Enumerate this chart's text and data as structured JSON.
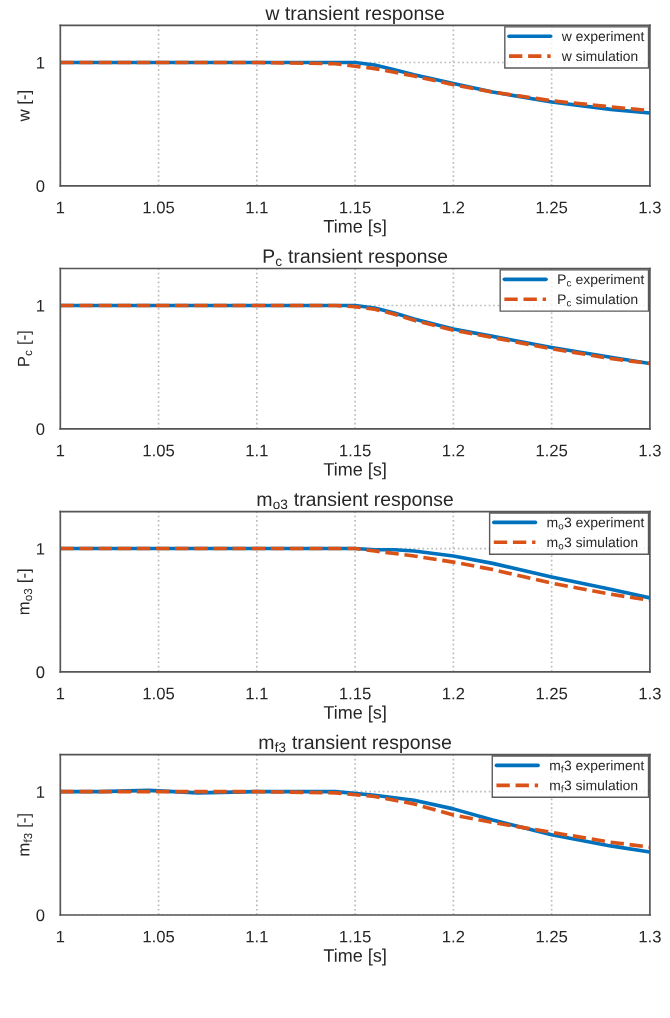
{
  "chart_data": [
    {
      "type": "line",
      "title": "w transient response",
      "xlabel": "Time [s]",
      "ylabel": "w [-]",
      "xlim": [
        1,
        1.3
      ],
      "ylim": [
        0,
        1.3
      ],
      "xticks": [
        1,
        1.05,
        1.1,
        1.15,
        1.2,
        1.25,
        1.3
      ],
      "yticks": [
        0,
        1
      ],
      "grid": true,
      "legend": "top right",
      "x": [
        1,
        1.05,
        1.1,
        1.14,
        1.15,
        1.16,
        1.17,
        1.18,
        1.2,
        1.22,
        1.25,
        1.28,
        1.3
      ],
      "series": [
        {
          "name": "w experiment",
          "color": "#0072bd",
          "line_style": "solid",
          "values": [
            1,
            1,
            1,
            1,
            1,
            0.98,
            0.94,
            0.9,
            0.83,
            0.76,
            0.68,
            0.62,
            0.59
          ]
        },
        {
          "name": "w simulation",
          "color": "#d95319",
          "line_style": "dashed",
          "values": [
            1,
            1,
            1,
            0.99,
            0.97,
            0.95,
            0.92,
            0.89,
            0.82,
            0.76,
            0.69,
            0.64,
            0.61
          ]
        }
      ]
    },
    {
      "type": "line",
      "title": "P$_{c}$ transient response",
      "xlabel": "Time [s]",
      "ylabel": "P$_{c}$ [-]",
      "xlim": [
        1,
        1.3
      ],
      "ylim": [
        0,
        1.3
      ],
      "xticks": [
        1,
        1.05,
        1.1,
        1.15,
        1.2,
        1.25,
        1.3
      ],
      "yticks": [
        0,
        1
      ],
      "grid": true,
      "legend": "top right",
      "x": [
        1,
        1.05,
        1.1,
        1.14,
        1.15,
        1.16,
        1.17,
        1.18,
        1.2,
        1.22,
        1.25,
        1.28,
        1.3
      ],
      "series": [
        {
          "name": "P$_{c}$ experiment",
          "color": "#0072bd",
          "line_style": "solid",
          "values": [
            1,
            1,
            1,
            1,
            1,
            0.98,
            0.94,
            0.89,
            0.81,
            0.75,
            0.66,
            0.58,
            0.53
          ]
        },
        {
          "name": "P$_{c}$ simulation",
          "color": "#d95319",
          "line_style": "dashed",
          "values": [
            1,
            1,
            1,
            1,
            0.99,
            0.97,
            0.93,
            0.88,
            0.8,
            0.74,
            0.65,
            0.57,
            0.53
          ]
        }
      ]
    },
    {
      "type": "line",
      "title": "m$_{o3}$ transient response",
      "xlabel": "Time [s]",
      "ylabel": "m$_{o3}$ [-]",
      "xlim": [
        1,
        1.3
      ],
      "ylim": [
        0,
        1.3
      ],
      "xticks": [
        1,
        1.05,
        1.1,
        1.15,
        1.2,
        1.25,
        1.3
      ],
      "yticks": [
        0,
        1
      ],
      "grid": true,
      "legend": "top right",
      "x": [
        1,
        1.05,
        1.1,
        1.14,
        1.15,
        1.16,
        1.17,
        1.18,
        1.2,
        1.22,
        1.25,
        1.28,
        1.3
      ],
      "series": [
        {
          "name": "m$_{o}$3 experiment",
          "color": "#0072bd",
          "line_style": "solid",
          "values": [
            1,
            1,
            1,
            1,
            1,
            0.99,
            0.99,
            0.98,
            0.94,
            0.88,
            0.77,
            0.67,
            0.6
          ]
        },
        {
          "name": "m$_{o}$3 simulation",
          "color": "#d95319",
          "line_style": "dashed",
          "values": [
            1,
            1,
            1,
            1,
            1,
            0.98,
            0.96,
            0.94,
            0.89,
            0.83,
            0.72,
            0.63,
            0.58
          ]
        }
      ]
    },
    {
      "type": "line",
      "title": "m$_{f3}$ transient response",
      "xlabel": "Time [s]",
      "ylabel": "m$_{f3}$ [-]",
      "xlim": [
        1,
        1.3
      ],
      "ylim": [
        0,
        1.3
      ],
      "xticks": [
        1,
        1.05,
        1.1,
        1.15,
        1.2,
        1.25,
        1.3
      ],
      "yticks": [
        0,
        1
      ],
      "grid": true,
      "legend": "top right",
      "x": [
        1,
        1.02,
        1.045,
        1.07,
        1.1,
        1.14,
        1.16,
        1.18,
        1.2,
        1.22,
        1.25,
        1.28,
        1.3
      ],
      "series": [
        {
          "name": "m$_{f}$3 experiment",
          "color": "#0072bd",
          "line_style": "solid",
          "values": [
            1,
            1,
            1.01,
            0.99,
            1,
            1,
            0.97,
            0.93,
            0.86,
            0.77,
            0.65,
            0.56,
            0.51
          ]
        },
        {
          "name": "m$_{f}$3 simulation",
          "color": "#d95319",
          "line_style": "dashed",
          "values": [
            1,
            1,
            1,
            1,
            1,
            0.99,
            0.96,
            0.9,
            0.81,
            0.75,
            0.67,
            0.59,
            0.55
          ]
        }
      ]
    }
  ]
}
